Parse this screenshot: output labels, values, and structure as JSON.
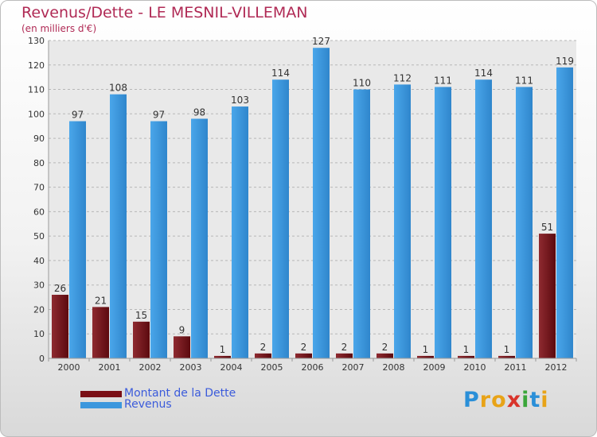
{
  "colors": {
    "title": "#b02a55",
    "dette": "#7a0f15",
    "revenus": "#3c97dd",
    "legend_text": "#3b5bdb"
  },
  "chart_data": {
    "type": "bar",
    "title": "Revenus/Dette - LE MESNIL-VILLEMAN",
    "subtitle": "(en milliers d'€)",
    "categories": [
      "2000",
      "2001",
      "2002",
      "2003",
      "2004",
      "2005",
      "2006",
      "2007",
      "2008",
      "2009",
      "2010",
      "2011",
      "2012"
    ],
    "series": [
      {
        "name": "Montant de la Dette",
        "color": "#7a0f15",
        "values": [
          26,
          21,
          15,
          9,
          1,
          2,
          2,
          2,
          2,
          1,
          1,
          1,
          51
        ]
      },
      {
        "name": "Revenus",
        "color": "#3c97dd",
        "values": [
          97,
          108,
          97,
          98,
          103,
          114,
          127,
          110,
          112,
          111,
          114,
          111,
          119
        ]
      }
    ],
    "ylim": [
      0,
      130
    ],
    "yticks": [
      0,
      10,
      20,
      30,
      40,
      50,
      60,
      70,
      80,
      90,
      100,
      110,
      120,
      130
    ],
    "grid": true,
    "legend_position": "bottom-left"
  },
  "legend": {
    "items": [
      {
        "label": "Montant de la Dette",
        "color": "#7a0f15"
      },
      {
        "label": "Revenus",
        "color": "#3c97dd"
      }
    ]
  },
  "logo": {
    "text": "Proxiti",
    "letters": [
      "P",
      "r",
      "o",
      "x",
      "i",
      "t",
      "i"
    ],
    "letter_colors": [
      "#2a8fd8",
      "#e8a317",
      "#e8a317",
      "#d9342b",
      "#3aa63a",
      "#2a8fd8",
      "#e8a317"
    ]
  }
}
